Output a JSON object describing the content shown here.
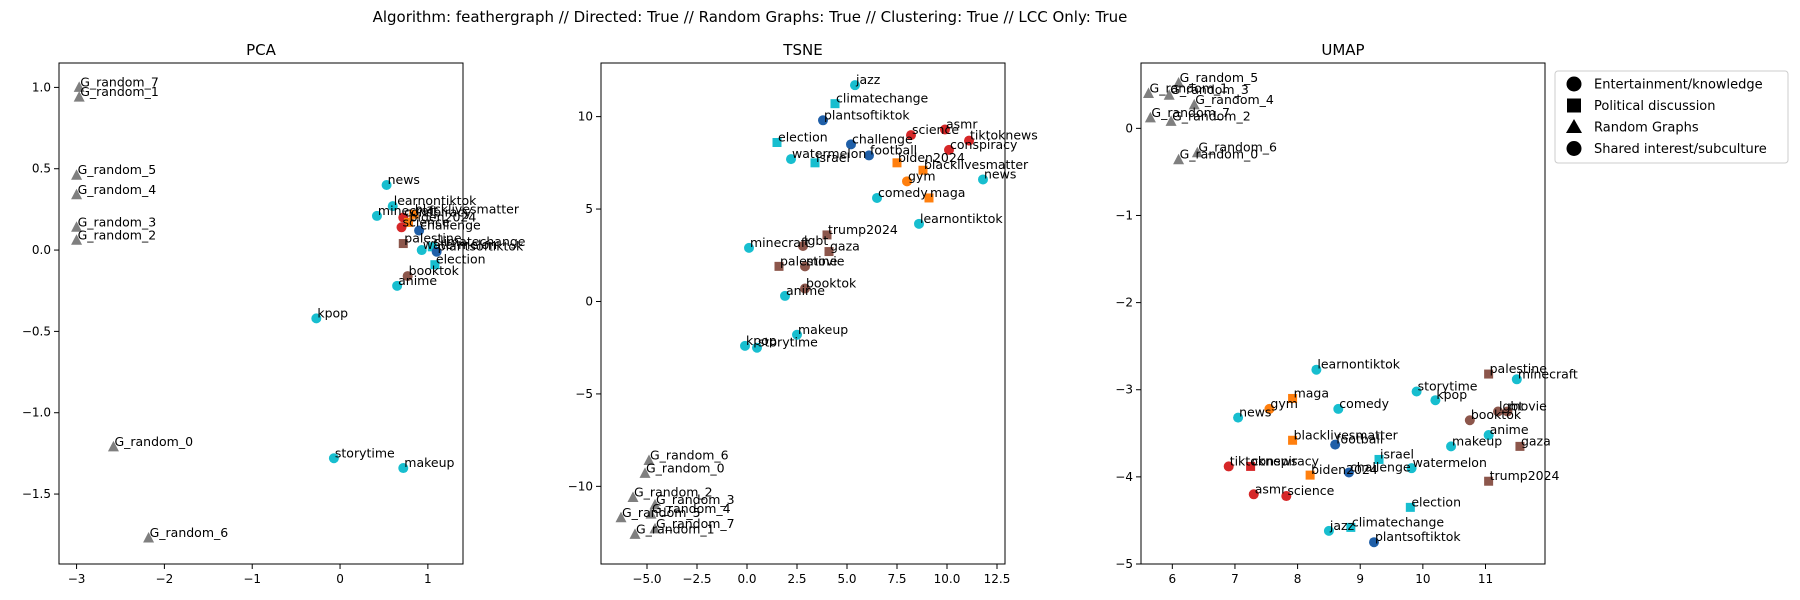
{
  "figure": {
    "suptitle": "Algorithm: feathergraph // Directed: True // Random Graphs: True // Clustering: True // LCC Only: True"
  },
  "colors": {
    "cyan": "#17becf",
    "blue": "#1f5fa8",
    "red": "#d62728",
    "orange": "#ff7f0e",
    "brown": "#8c564b",
    "gray": "#7f7f7f"
  },
  "legend": {
    "position": "right of UMAP panel",
    "entries": [
      {
        "label": "Entertainment/knowledge",
        "marker": "circle"
      },
      {
        "label": "Political discussion",
        "marker": "square"
      },
      {
        "label": "Random Graphs",
        "marker": "triangle"
      },
      {
        "label": "Shared interest/subculture",
        "marker": "circle"
      }
    ]
  },
  "chart_data": [
    {
      "type": "scatter",
      "title": "PCA",
      "xlim": [
        -3.2,
        1.4
      ],
      "ylim": [
        -1.93,
        1.15
      ],
      "xticks": [
        -3,
        -2,
        -1,
        0,
        1
      ],
      "xtick_labels": [
        "−3",
        "−2",
        "−1",
        "0",
        "1"
      ],
      "yticks": [
        1.0,
        0.5,
        0.0,
        -0.5,
        -1.0,
        -1.5
      ],
      "ytick_labels": [
        "1.0",
        "0.5",
        "0.0",
        "−0.5",
        "−1.0",
        "−1.5"
      ],
      "points": [
        {
          "label": "G_random_7",
          "x": -2.97,
          "y": 1.0,
          "marker": "triangle",
          "color": "gray"
        },
        {
          "label": "G_random_1",
          "x": -2.97,
          "y": 0.94,
          "marker": "triangle",
          "color": "gray"
        },
        {
          "label": "G_random_5",
          "x": -3.0,
          "y": 0.46,
          "marker": "triangle",
          "color": "gray"
        },
        {
          "label": "G_random_4",
          "x": -3.0,
          "y": 0.34,
          "marker": "triangle",
          "color": "gray"
        },
        {
          "label": "G_random_3",
          "x": -3.0,
          "y": 0.14,
          "marker": "triangle",
          "color": "gray"
        },
        {
          "label": "G_random_2",
          "x": -3.0,
          "y": 0.06,
          "marker": "triangle",
          "color": "gray"
        },
        {
          "label": "G_random_0",
          "x": -2.58,
          "y": -1.21,
          "marker": "triangle",
          "color": "gray"
        },
        {
          "label": "G_random_6",
          "x": -2.18,
          "y": -1.77,
          "marker": "triangle",
          "color": "gray"
        },
        {
          "label": "news",
          "x": 0.53,
          "y": 0.4,
          "marker": "circle",
          "color": "cyan"
        },
        {
          "label": "learnontiktok",
          "x": 0.6,
          "y": 0.27,
          "marker": "circle",
          "color": "cyan"
        },
        {
          "label": "blacklivesmatter",
          "x": 0.84,
          "y": 0.22,
          "marker": "square",
          "color": "orange"
        },
        {
          "label": "minecraft",
          "x": 0.42,
          "y": 0.21,
          "marker": "circle",
          "color": "cyan"
        },
        {
          "label": "conspiracy",
          "x": 0.72,
          "y": 0.2,
          "marker": "circle",
          "color": "red"
        },
        {
          "label": "biden2024",
          "x": 0.78,
          "y": 0.17,
          "marker": "square",
          "color": "orange"
        },
        {
          "label": "science",
          "x": 0.7,
          "y": 0.14,
          "marker": "circle",
          "color": "red"
        },
        {
          "label": "challenge",
          "x": 0.9,
          "y": 0.12,
          "marker": "circle",
          "color": "blue"
        },
        {
          "label": "palestine",
          "x": 0.72,
          "y": 0.04,
          "marker": "square",
          "color": "brown"
        },
        {
          "label": "watermelon",
          "x": 0.93,
          "y": 0.0,
          "marker": "circle",
          "color": "cyan"
        },
        {
          "label": "climatechange",
          "x": 1.05,
          "y": 0.02,
          "marker": "square",
          "color": "cyan"
        },
        {
          "label": "plantsoftiktok",
          "x": 1.1,
          "y": -0.01,
          "marker": "circle",
          "color": "blue"
        },
        {
          "label": "election",
          "x": 1.08,
          "y": -0.09,
          "marker": "square",
          "color": "cyan"
        },
        {
          "label": "booktok",
          "x": 0.77,
          "y": -0.16,
          "marker": "circle",
          "color": "brown"
        },
        {
          "label": "anime",
          "x": 0.65,
          "y": -0.22,
          "marker": "circle",
          "color": "cyan"
        },
        {
          "label": "kpop",
          "x": -0.27,
          "y": -0.42,
          "marker": "circle",
          "color": "cyan"
        },
        {
          "label": "storytime",
          "x": -0.07,
          "y": -1.28,
          "marker": "circle",
          "color": "cyan"
        },
        {
          "label": "makeup",
          "x": 0.72,
          "y": -1.34,
          "marker": "circle",
          "color": "cyan"
        }
      ]
    },
    {
      "type": "scatter",
      "title": "TSNE",
      "xlim": [
        -7.3,
        12.9
      ],
      "ylim": [
        -14.2,
        12.9
      ],
      "xticks": [
        -5.0,
        -2.5,
        0.0,
        2.5,
        5.0,
        7.5,
        10.0,
        12.5
      ],
      "xtick_labels": [
        "−5.0",
        "−2.5",
        "0.0",
        "2.5",
        "5.0",
        "7.5",
        "10.0",
        "12.5"
      ],
      "yticks": [
        10,
        5,
        0,
        -5,
        -10
      ],
      "ytick_labels": [
        "10",
        "5",
        "0",
        "−5",
        "−10"
      ],
      "points": [
        {
          "label": "jazz",
          "x": 5.4,
          "y": 11.7,
          "marker": "circle",
          "color": "cyan"
        },
        {
          "label": "climatechange",
          "x": 4.4,
          "y": 10.7,
          "marker": "square",
          "color": "cyan"
        },
        {
          "label": "plantsoftiktok",
          "x": 3.8,
          "y": 9.8,
          "marker": "circle",
          "color": "blue"
        },
        {
          "label": "asmr",
          "x": 9.9,
          "y": 9.3,
          "marker": "circle",
          "color": "red"
        },
        {
          "label": "science",
          "x": 8.2,
          "y": 9.0,
          "marker": "circle",
          "color": "red"
        },
        {
          "label": "tiktoknews",
          "x": 11.1,
          "y": 8.7,
          "marker": "circle",
          "color": "red"
        },
        {
          "label": "election",
          "x": 1.5,
          "y": 8.6,
          "marker": "square",
          "color": "cyan"
        },
        {
          "label": "challenge",
          "x": 5.2,
          "y": 8.5,
          "marker": "circle",
          "color": "blue"
        },
        {
          "label": "conspiracy",
          "x": 10.1,
          "y": 8.2,
          "marker": "circle",
          "color": "red"
        },
        {
          "label": "football",
          "x": 6.1,
          "y": 7.9,
          "marker": "circle",
          "color": "blue"
        },
        {
          "label": "watermelon",
          "x": 2.2,
          "y": 7.7,
          "marker": "circle",
          "color": "cyan"
        },
        {
          "label": "israel",
          "x": 3.4,
          "y": 7.5,
          "marker": "square",
          "color": "cyan"
        },
        {
          "label": "biden2024",
          "x": 7.5,
          "y": 7.5,
          "marker": "square",
          "color": "orange"
        },
        {
          "label": "blacklivesmatter",
          "x": 8.8,
          "y": 7.1,
          "marker": "square",
          "color": "orange"
        },
        {
          "label": "gym",
          "x": 8.0,
          "y": 6.5,
          "marker": "circle",
          "color": "orange"
        },
        {
          "label": "news",
          "x": 11.8,
          "y": 6.6,
          "marker": "circle",
          "color": "cyan"
        },
        {
          "label": "comedy",
          "x": 6.5,
          "y": 5.6,
          "marker": "circle",
          "color": "cyan"
        },
        {
          "label": "maga",
          "x": 9.1,
          "y": 5.6,
          "marker": "square",
          "color": "orange"
        },
        {
          "label": "learnontiktok",
          "x": 8.6,
          "y": 4.2,
          "marker": "circle",
          "color": "cyan"
        },
        {
          "label": "trump2024",
          "x": 4.0,
          "y": 3.6,
          "marker": "square",
          "color": "brown"
        },
        {
          "label": "minecraft",
          "x": 0.1,
          "y": 2.9,
          "marker": "circle",
          "color": "cyan"
        },
        {
          "label": "lgbt",
          "x": 2.8,
          "y": 3.0,
          "marker": "circle",
          "color": "brown"
        },
        {
          "label": "gaza",
          "x": 4.1,
          "y": 2.7,
          "marker": "square",
          "color": "brown"
        },
        {
          "label": "palestine",
          "x": 1.6,
          "y": 1.9,
          "marker": "square",
          "color": "brown"
        },
        {
          "label": "movie",
          "x": 2.9,
          "y": 1.9,
          "marker": "circle",
          "color": "brown"
        },
        {
          "label": "booktok",
          "x": 2.9,
          "y": 0.7,
          "marker": "circle",
          "color": "brown"
        },
        {
          "label": "anime",
          "x": 1.9,
          "y": 0.3,
          "marker": "circle",
          "color": "cyan"
        },
        {
          "label": "makeup",
          "x": 2.5,
          "y": -1.8,
          "marker": "circle",
          "color": "cyan"
        },
        {
          "label": "kpop",
          "x": -0.1,
          "y": -2.4,
          "marker": "circle",
          "color": "cyan"
        },
        {
          "label": "storytime",
          "x": 0.5,
          "y": -2.5,
          "marker": "circle",
          "color": "cyan"
        },
        {
          "label": "G_random_6",
          "x": -4.9,
          "y": -8.6,
          "marker": "triangle",
          "color": "gray"
        },
        {
          "label": "G_random_0",
          "x": -5.1,
          "y": -9.3,
          "marker": "triangle",
          "color": "gray"
        },
        {
          "label": "G_random_2",
          "x": -5.7,
          "y": -10.6,
          "marker": "triangle",
          "color": "gray"
        },
        {
          "label": "G_random_3",
          "x": -4.6,
          "y": -11.0,
          "marker": "triangle",
          "color": "gray"
        },
        {
          "label": "G_random_4",
          "x": -4.8,
          "y": -11.5,
          "marker": "triangle",
          "color": "gray"
        },
        {
          "label": "G_random_5",
          "x": -6.3,
          "y": -11.7,
          "marker": "triangle",
          "color": "gray"
        },
        {
          "label": "G_random_7",
          "x": -4.6,
          "y": -12.3,
          "marker": "triangle",
          "color": "gray"
        },
        {
          "label": "G_random_1",
          "x": -5.6,
          "y": -12.6,
          "marker": "triangle",
          "color": "gray"
        }
      ]
    },
    {
      "type": "scatter",
      "title": "UMAP",
      "xlim": [
        5.5,
        11.95
      ],
      "ylim": [
        -5.0,
        0.75
      ],
      "xticks": [
        6,
        7,
        8,
        9,
        10,
        11
      ],
      "xtick_labels": [
        "6",
        "7",
        "8",
        "9",
        "10",
        "11"
      ],
      "yticks": [
        0,
        -1,
        -2,
        -3,
        -4,
        -5
      ],
      "ytick_labels": [
        "0",
        "−1",
        "−2",
        "−3",
        "−4",
        "−5"
      ],
      "points": [
        {
          "label": "G_random_5",
          "x": 6.1,
          "y": 0.52,
          "marker": "triangle",
          "color": "gray"
        },
        {
          "label": "G_random_1",
          "x": 5.62,
          "y": 0.4,
          "marker": "triangle",
          "color": "gray"
        },
        {
          "label": "G_random_3",
          "x": 5.95,
          "y": 0.38,
          "marker": "triangle",
          "color": "gray"
        },
        {
          "label": "G_random_4",
          "x": 6.35,
          "y": 0.27,
          "marker": "triangle",
          "color": "gray"
        },
        {
          "label": "G_random_7",
          "x": 5.65,
          "y": 0.12,
          "marker": "triangle",
          "color": "gray"
        },
        {
          "label": "G_random_2",
          "x": 5.98,
          "y": 0.08,
          "marker": "triangle",
          "color": "gray"
        },
        {
          "label": "G_random_6",
          "x": 6.4,
          "y": -0.28,
          "marker": "triangle",
          "color": "gray"
        },
        {
          "label": "G_random_0",
          "x": 6.1,
          "y": -0.36,
          "marker": "triangle",
          "color": "gray"
        },
        {
          "label": "palestine",
          "x": 11.05,
          "y": -2.82,
          "marker": "square",
          "color": "brown"
        },
        {
          "label": "minecraft",
          "x": 11.5,
          "y": -2.88,
          "marker": "circle",
          "color": "cyan"
        },
        {
          "label": "learnontiktok",
          "x": 8.3,
          "y": -2.77,
          "marker": "circle",
          "color": "cyan"
        },
        {
          "label": "storytime",
          "x": 9.9,
          "y": -3.02,
          "marker": "circle",
          "color": "cyan"
        },
        {
          "label": "maga",
          "x": 7.92,
          "y": -3.1,
          "marker": "square",
          "color": "orange"
        },
        {
          "label": "kpop",
          "x": 10.2,
          "y": -3.12,
          "marker": "circle",
          "color": "cyan"
        },
        {
          "label": "gym",
          "x": 7.55,
          "y": -3.22,
          "marker": "circle",
          "color": "orange"
        },
        {
          "label": "comedy",
          "x": 8.65,
          "y": -3.22,
          "marker": "circle",
          "color": "cyan"
        },
        {
          "label": "lgbt",
          "x": 11.2,
          "y": -3.25,
          "marker": "circle",
          "color": "brown"
        },
        {
          "label": "movie",
          "x": 11.35,
          "y": -3.25,
          "marker": "circle",
          "color": "brown"
        },
        {
          "label": "news",
          "x": 7.05,
          "y": -3.32,
          "marker": "circle",
          "color": "cyan"
        },
        {
          "label": "booktok",
          "x": 10.75,
          "y": -3.35,
          "marker": "circle",
          "color": "brown"
        },
        {
          "label": "anime",
          "x": 11.05,
          "y": -3.52,
          "marker": "circle",
          "color": "cyan"
        },
        {
          "label": "blacklivesmatter",
          "x": 7.92,
          "y": -3.58,
          "marker": "square",
          "color": "orange"
        },
        {
          "label": "football",
          "x": 8.6,
          "y": -3.63,
          "marker": "circle",
          "color": "blue"
        },
        {
          "label": "makeup",
          "x": 10.45,
          "y": -3.65,
          "marker": "circle",
          "color": "cyan"
        },
        {
          "label": "gaza",
          "x": 11.55,
          "y": -3.65,
          "marker": "square",
          "color": "brown"
        },
        {
          "label": "israel",
          "x": 9.3,
          "y": -3.8,
          "marker": "square",
          "color": "cyan"
        },
        {
          "label": "tiktoknews",
          "x": 6.9,
          "y": -3.88,
          "marker": "circle",
          "color": "red"
        },
        {
          "label": "conspiracy",
          "x": 7.25,
          "y": -3.88,
          "marker": "square",
          "color": "red"
        },
        {
          "label": "watermelon",
          "x": 9.82,
          "y": -3.9,
          "marker": "circle",
          "color": "cyan"
        },
        {
          "label": "challenge",
          "x": 8.82,
          "y": -3.95,
          "marker": "circle",
          "color": "blue"
        },
        {
          "label": "biden2024",
          "x": 8.2,
          "y": -3.98,
          "marker": "square",
          "color": "orange"
        },
        {
          "label": "trump2024",
          "x": 11.05,
          "y": -4.05,
          "marker": "square",
          "color": "brown"
        },
        {
          "label": "asmr",
          "x": 7.3,
          "y": -4.2,
          "marker": "circle",
          "color": "red"
        },
        {
          "label": "science",
          "x": 7.82,
          "y": -4.22,
          "marker": "circle",
          "color": "red"
        },
        {
          "label": "election",
          "x": 9.8,
          "y": -4.35,
          "marker": "square",
          "color": "cyan"
        },
        {
          "label": "jazz",
          "x": 8.5,
          "y": -4.62,
          "marker": "circle",
          "color": "cyan"
        },
        {
          "label": "climatechange",
          "x": 8.85,
          "y": -4.58,
          "marker": "square",
          "color": "cyan"
        },
        {
          "label": "plantsoftiktok",
          "x": 9.22,
          "y": -4.75,
          "marker": "circle",
          "color": "blue"
        }
      ]
    }
  ]
}
